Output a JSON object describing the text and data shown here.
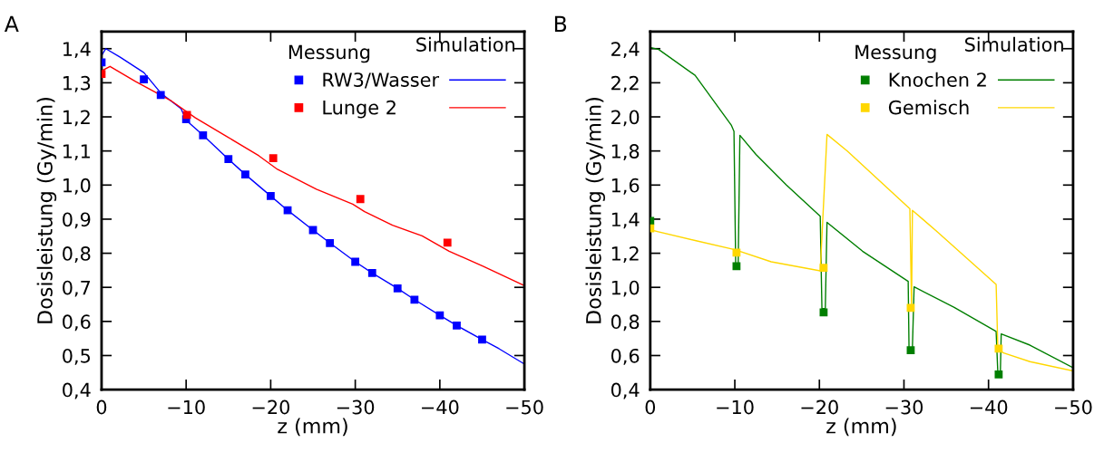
{
  "chart_data": [
    {
      "type": "line",
      "title": "A",
      "xlabel": "z (mm)",
      "ylabel": "Dosisleistung (Gy/min)",
      "legend_title": [
        "Messung",
        "Simulation"
      ],
      "xlim": [
        0,
        -50
      ],
      "xticks": [
        0,
        {
          "value": -10,
          "label": "−10"
        },
        {
          "value": -20,
          "label": "−20"
        },
        {
          "value": -30,
          "label": "−30"
        },
        {
          "value": -40,
          "label": "−40"
        },
        {
          "value": -50,
          "label": "−50"
        }
      ],
      "ylim": [
        0.4,
        1.45
      ],
      "yticks": [
        {
          "value": 0.4,
          "label": "0,4"
        },
        {
          "value": 0.5,
          "label": "0,5"
        },
        {
          "value": 0.6,
          "label": "0,6"
        },
        {
          "value": 0.7,
          "label": "0,7"
        },
        {
          "value": 0.8,
          "label": "0,8"
        },
        {
          "value": 0.9,
          "label": "0,9"
        },
        {
          "value": 1.0,
          "label": "1,0"
        },
        {
          "value": 1.1,
          "label": "1,1"
        },
        {
          "value": 1.2,
          "label": "1,2"
        },
        {
          "value": 1.3,
          "label": "1,3"
        },
        {
          "value": 1.4,
          "label": "1,4"
        }
      ],
      "grid": false,
      "legend": "top right",
      "series": [
        {
          "name": "RW3/Wasser",
          "type": "scatter",
          "marker": "square",
          "color": "#0000ff",
          "x": [
            0,
            -5,
            -7,
            -10,
            -12,
            -15,
            -17,
            -20,
            -22,
            -25,
            -27,
            -30,
            -32,
            -35,
            -37,
            -40,
            -42,
            -45
          ],
          "values": [
            1.36,
            1.31,
            1.264,
            1.193,
            1.146,
            1.076,
            1.031,
            0.968,
            0.926,
            0.868,
            0.83,
            0.775,
            0.742,
            0.697,
            0.664,
            0.618,
            0.588,
            0.547
          ]
        },
        {
          "name": "Lunge 2",
          "type": "scatter",
          "marker": "square",
          "color": "#ff0000",
          "x": [
            0,
            -10.1,
            -20.3,
            -30.6,
            -40.9
          ],
          "values": [
            1.326,
            1.206,
            1.079,
            0.959,
            0.831
          ]
        },
        {
          "type": "line",
          "marker": "none",
          "line_style": "solid",
          "color": "#0000ff",
          "x": [
            0,
            -0.5,
            -2.2,
            -5,
            -7,
            -9.4,
            -10,
            -12,
            -15,
            -17,
            -20,
            -22,
            -25,
            -27,
            -30,
            -32,
            -35,
            -37,
            -40,
            -42,
            -45,
            -47,
            -50
          ],
          "values": [
            1.38,
            1.4,
            1.375,
            1.33,
            1.27,
            1.224,
            1.19,
            1.146,
            1.076,
            1.031,
            0.968,
            0.926,
            0.868,
            0.83,
            0.775,
            0.742,
            0.697,
            0.664,
            0.618,
            0.588,
            0.547,
            0.52,
            0.475
          ]
        },
        {
          "type": "line",
          "marker": "none",
          "line_style": "solid",
          "color": "#ff0000",
          "x": [
            0,
            -1,
            -4,
            -8.3,
            -11.1,
            -14.7,
            -18.6,
            -20.8,
            -25.4,
            -29.7,
            -31.1,
            -34.4,
            -37.9,
            -41.1,
            -45.1,
            -50
          ],
          "values": [
            1.335,
            1.348,
            1.304,
            1.246,
            1.197,
            1.144,
            1.086,
            1.046,
            0.988,
            0.944,
            0.922,
            0.882,
            0.851,
            0.806,
            0.762,
            0.705
          ]
        }
      ]
    },
    {
      "type": "line",
      "title": "B",
      "xlabel": "z (mm)",
      "ylabel": "Dosisleistung (Gy/min)",
      "legend_title": [
        "Messung",
        "Simulation"
      ],
      "xlim": [
        0,
        -50
      ],
      "xticks": [
        0,
        {
          "value": -10,
          "label": "−10"
        },
        {
          "value": -20,
          "label": "−20"
        },
        {
          "value": -30,
          "label": "−30"
        },
        {
          "value": -40,
          "label": "−40"
        },
        {
          "value": -50,
          "label": "−50"
        }
      ],
      "ylim": [
        0.4,
        2.5
      ],
      "yticks": [
        {
          "value": 0.4,
          "label": "0,4"
        },
        {
          "value": 0.6,
          "label": "0,6"
        },
        {
          "value": 0.8,
          "label": "0,8"
        },
        {
          "value": 1.0,
          "label": "1,0"
        },
        {
          "value": 1.2,
          "label": "1,2"
        },
        {
          "value": 1.4,
          "label": "1,4"
        },
        {
          "value": 1.6,
          "label": "1,6"
        },
        {
          "value": 1.8,
          "label": "1,8"
        },
        {
          "value": 2.0,
          "label": "2,0"
        },
        {
          "value": 2.2,
          "label": "2,2"
        },
        {
          "value": 2.4,
          "label": "2,4"
        }
      ],
      "grid": false,
      "legend": "top right",
      "series": [
        {
          "name": "Knochen 2",
          "type": "scatter",
          "marker": "square",
          "color": "#007f00",
          "x": [
            0,
            -10.2,
            -20.5,
            -30.8,
            -41.2
          ],
          "values": [
            1.39,
            1.124,
            0.853,
            0.631,
            0.489
          ]
        },
        {
          "name": "Gemisch",
          "type": "scatter",
          "marker": "square",
          "color": "#ffd700",
          "x": [
            0,
            -10.2,
            -20.5,
            -30.8,
            -41.2
          ],
          "values": [
            1.346,
            1.204,
            1.115,
            0.88,
            0.64
          ]
        },
        {
          "type": "line",
          "marker": "none",
          "line_style": "solid",
          "color": "#007f00",
          "x": [
            0,
            -1,
            -5.3,
            -9.6,
            -9.9,
            -10.1,
            -10.4,
            -10.6,
            -12.5,
            -16.1,
            -20.1,
            -20.3,
            -20.7,
            -20.9,
            -25.1,
            -30.5,
            -30.6,
            -31,
            -31.2,
            -35.9,
            -40.9,
            -41.1,
            -41.4,
            -41.5,
            -44.9,
            -50
          ],
          "values": [
            2.407,
            2.395,
            2.244,
            1.95,
            1.915,
            1.141,
            1.141,
            1.892,
            1.78,
            1.6,
            1.417,
            0.875,
            0.875,
            1.381,
            1.212,
            1.035,
            0.644,
            0.644,
            1.003,
            0.884,
            0.741,
            0.501,
            0.501,
            0.727,
            0.661,
            0.528
          ]
        },
        {
          "type": "line",
          "marker": "none",
          "line_style": "solid",
          "color": "#ffd700",
          "x": [
            0,
            -5.3,
            -10,
            -14.3,
            -20.1,
            -20.9,
            -23.3,
            -30.5,
            -30.7,
            -30.9,
            -31,
            -34.1,
            -40.9,
            -41.1,
            -41.7,
            -44.9,
            -50
          ],
          "values": [
            1.337,
            1.275,
            1.221,
            1.15,
            1.097,
            1.897,
            1.8,
            1.47,
            1.461,
            0.884,
            1.452,
            1.319,
            1.017,
            0.644,
            0.617,
            0.564,
            0.51
          ]
        }
      ]
    }
  ]
}
